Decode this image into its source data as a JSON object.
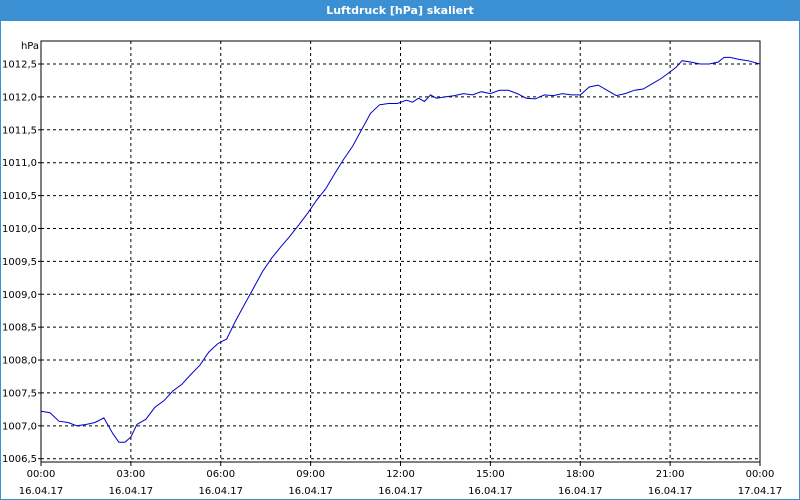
{
  "window": {
    "title": "Luftdruck [hPa] skaliert"
  },
  "chart_data": {
    "type": "line",
    "title": "Luftdruck [hPa] skaliert",
    "ylabel": "hPa",
    "xlabel": "",
    "ylim": [
      1006.45,
      1012.85
    ],
    "xlim": [
      0,
      24
    ],
    "grid": true,
    "yticks": [
      1006.5,
      1007.0,
      1007.5,
      1008.0,
      1008.5,
      1009.0,
      1009.5,
      1010.0,
      1010.5,
      1011.0,
      1011.5,
      1012.0,
      1012.5
    ],
    "ytick_labels": [
      "1006,5",
      "1007,0",
      "1007,5",
      "1008,0",
      "1008,5",
      "1009,0",
      "1009,5",
      "1010,0",
      "1010,5",
      "1011,0",
      "1011,5",
      "1012,0",
      "1012,5"
    ],
    "xticks": [
      {
        "time": "00:00",
        "date": "16.04.17"
      },
      {
        "time": "03:00",
        "date": "16.04.17"
      },
      {
        "time": "06:00",
        "date": "16.04.17"
      },
      {
        "time": "09:00",
        "date": "16.04.17"
      },
      {
        "time": "12:00",
        "date": "16.04.17"
      },
      {
        "time": "15:00",
        "date": "16.04.17"
      },
      {
        "time": "18:00",
        "date": "16.04.17"
      },
      {
        "time": "21:00",
        "date": "16.04.17"
      },
      {
        "time": "00:00",
        "date": "17.04.17"
      }
    ],
    "line_color": "#0000cc",
    "series": [
      {
        "x": [
          0,
          0.3,
          0.6,
          0.9,
          1.2,
          1.5,
          1.8,
          2.1,
          2.4,
          2.6,
          2.8,
          3.0,
          3.2,
          3.5,
          3.8,
          4.1,
          4.4,
          4.7,
          5.0,
          5.3,
          5.6,
          5.9,
          6.2,
          6.5,
          6.8,
          7.1,
          7.4,
          7.7,
          8.0,
          8.3,
          8.6,
          8.9,
          9.2,
          9.5,
          9.8,
          10.1,
          10.4,
          10.7,
          11.0,
          11.3,
          11.6,
          11.9,
          12.2,
          12.4,
          12.6,
          12.8,
          13.0,
          13.2,
          13.5,
          13.8,
          14.1,
          14.4,
          14.7,
          15.0,
          15.3,
          15.6,
          15.9,
          16.2,
          16.5,
          16.8,
          17.1,
          17.4,
          17.7,
          18.0,
          18.3,
          18.6,
          18.9,
          19.2,
          19.5,
          19.8,
          20.1,
          20.4,
          20.7,
          21.0,
          21.2,
          21.4,
          21.7,
          22.0,
          22.3,
          22.6,
          22.8,
          23.0,
          23.3,
          23.6,
          24.0
        ],
        "values": [
          1007.22,
          1007.2,
          1007.07,
          1007.05,
          1007.0,
          1007.02,
          1007.05,
          1007.12,
          1006.88,
          1006.75,
          1006.75,
          1006.83,
          1007.02,
          1007.1,
          1007.28,
          1007.38,
          1007.53,
          1007.63,
          1007.78,
          1007.92,
          1008.12,
          1008.25,
          1008.32,
          1008.6,
          1008.85,
          1009.1,
          1009.35,
          1009.55,
          1009.72,
          1009.88,
          1010.05,
          1010.23,
          1010.43,
          1010.6,
          1010.83,
          1011.05,
          1011.25,
          1011.5,
          1011.75,
          1011.88,
          1011.9,
          1011.9,
          1011.95,
          1011.92,
          1011.98,
          1011.93,
          1012.03,
          1011.98,
          1012.0,
          1012.02,
          1012.05,
          1012.03,
          1012.08,
          1012.05,
          1012.1,
          1012.1,
          1012.05,
          1011.98,
          1011.97,
          1012.03,
          1012.02,
          1012.05,
          1012.03,
          1012.03,
          1012.15,
          1012.18,
          1012.1,
          1012.02,
          1012.05,
          1012.1,
          1012.12,
          1012.2,
          1012.28,
          1012.38,
          1012.45,
          1012.55,
          1012.53,
          1012.5,
          1012.5,
          1012.53,
          1012.6,
          1012.6,
          1012.57,
          1012.55,
          1012.5
        ]
      }
    ]
  }
}
